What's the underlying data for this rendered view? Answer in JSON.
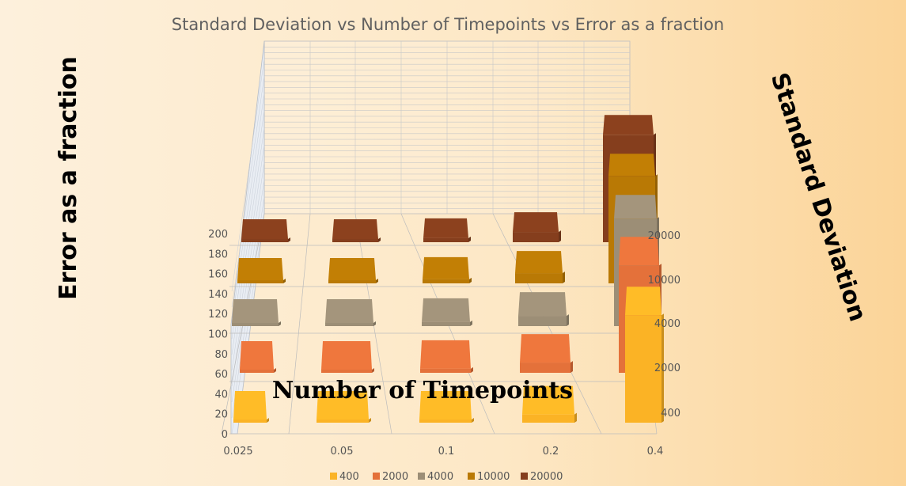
{
  "chart_data": {
    "type": "bar3d",
    "title": "Standard Deviation vs Number of Timepoints vs Error as a fraction",
    "xlabel": "Number of Timepoints",
    "ylabel": "Error as a fraction",
    "zlabel": "Standard Deviation",
    "categories": [
      "0.025",
      "0.05",
      "0.1",
      "0.2",
      "0.4"
    ],
    "y_ticks": [
      "0",
      "20",
      "40",
      "60",
      "80",
      "100",
      "120",
      "140",
      "160",
      "180",
      "200"
    ],
    "ylim": [
      0,
      200
    ],
    "series": [
      {
        "name": "400",
        "color": "#fbb325",
        "values": [
          1,
          2,
          3,
          8,
          105
        ]
      },
      {
        "name": "2000",
        "color": "#e4713a",
        "values": [
          1,
          2,
          4,
          10,
          105
        ]
      },
      {
        "name": "4000",
        "color": "#9c8e76",
        "values": [
          1,
          2,
          4,
          10,
          105
        ]
      },
      {
        "name": "10000",
        "color": "#b97905",
        "values": [
          1,
          2,
          4,
          10,
          105
        ]
      },
      {
        "name": "20000",
        "color": "#853e1d",
        "values": [
          1,
          2,
          4,
          10,
          105
        ]
      }
    ],
    "legend_position": "bottom",
    "grid": true
  }
}
